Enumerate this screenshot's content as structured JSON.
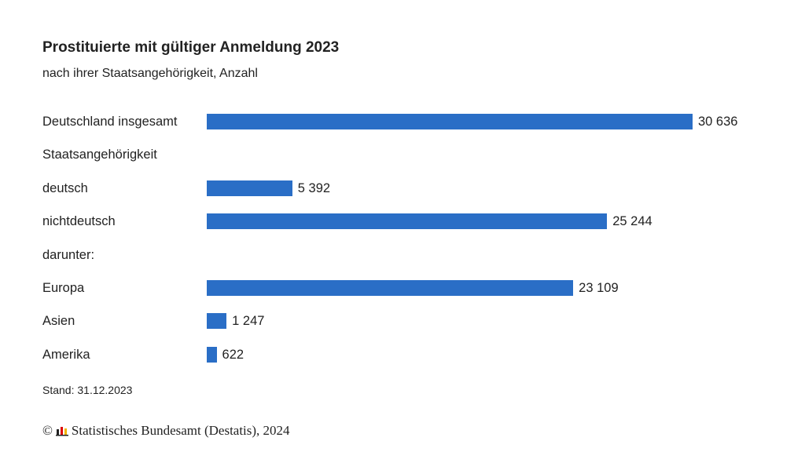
{
  "chart_data": {
    "type": "bar",
    "orientation": "horizontal",
    "title": "Prostituierte mit gültiger Anmeldung 2023",
    "subtitle": "nach ihrer Staatsangehörigkeit, Anzahl",
    "categories": [
      "Deutschland insgesamt",
      "Staatsangehörigkeit",
      "deutsch",
      "nichtdeutsch",
      "darunter:",
      "Europa",
      "Asien",
      "Amerika"
    ],
    "values": [
      30636,
      null,
      5392,
      25244,
      null,
      23109,
      1247,
      622
    ],
    "value_labels": [
      "30 636",
      "",
      "5 392",
      "25 244",
      "",
      "23 109",
      "1 247",
      "622"
    ],
    "xlim": [
      0,
      30636
    ],
    "grid": false,
    "color": "#2a6ec6",
    "note": "Stand: 31.12.2023"
  },
  "footer": {
    "copyright": "©",
    "source": "Statistisches Bundesamt (Destatis), 2024",
    "logo_icon": "destatis-logo-icon"
  }
}
